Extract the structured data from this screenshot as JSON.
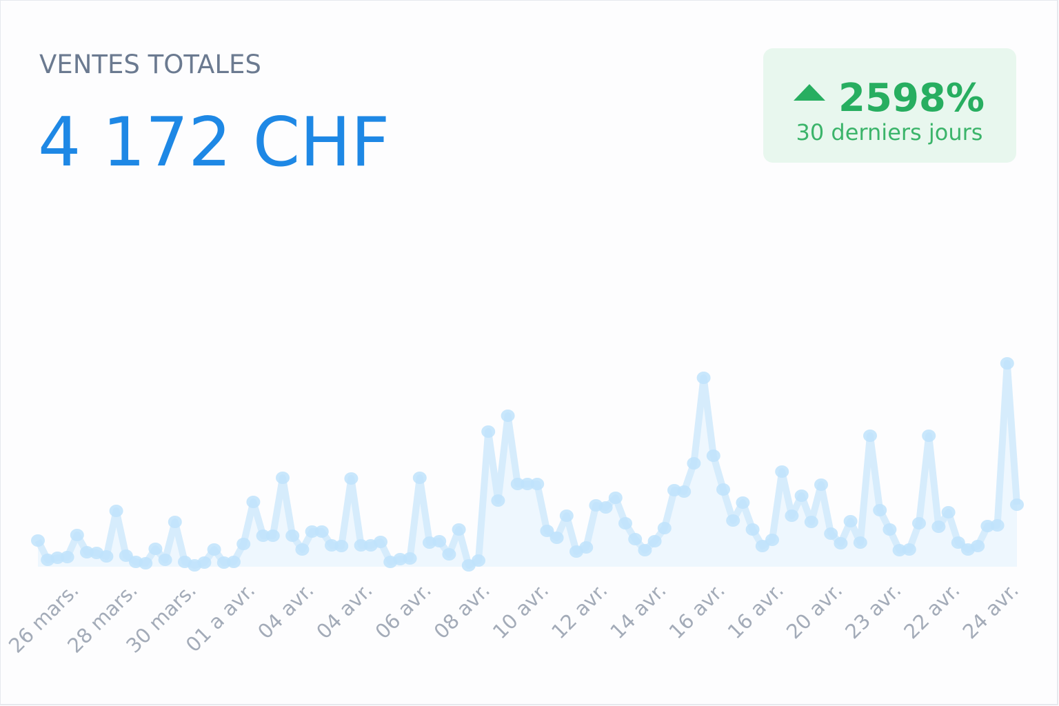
{
  "chart_data": {
    "type": "line",
    "title": "VENTES TOTALES",
    "subtitle": "4 172 CHF",
    "annotations": [
      "2598%",
      "30 derniers jours"
    ],
    "categories": [
      null,
      null,
      null,
      null,
      "26 mars.",
      null,
      null,
      null,
      null,
      null,
      "28 mars.",
      null,
      null,
      null,
      null,
      null,
      "30 mars.",
      null,
      null,
      null,
      null,
      null,
      "01 a avr.",
      null,
      null,
      null,
      null,
      null,
      "04 avr.",
      null,
      null,
      null,
      null,
      null,
      "04 avr.",
      null,
      null,
      null,
      null,
      null,
      "06 avr.",
      null,
      null,
      null,
      null,
      null,
      "08 avr.",
      null,
      null,
      null,
      null,
      null,
      "10 avr.",
      null,
      null,
      null,
      null,
      null,
      "12 avr.",
      null,
      null,
      null,
      null,
      null,
      "14 avr.",
      null,
      null,
      null,
      null,
      null,
      "16 avr.",
      null,
      null,
      null,
      null,
      null,
      "16 avr.",
      null,
      null,
      null,
      null,
      null,
      "20 avr.",
      null,
      null,
      null,
      null,
      null,
      "23 avr.",
      null,
      null,
      null,
      null,
      null,
      "22 avr.",
      null,
      null,
      null,
      null,
      null,
      "24 avr."
    ],
    "values": [
      38,
      10,
      13,
      14,
      46,
      21,
      20,
      15,
      81,
      16,
      7,
      5,
      26,
      10,
      65,
      7,
      2,
      6,
      25,
      6,
      7,
      33,
      94,
      45,
      45,
      129,
      45,
      25,
      51,
      51,
      31,
      30,
      128,
      31,
      31,
      36,
      7,
      11,
      12,
      129,
      35,
      37,
      18,
      54,
      2,
      9,
      196,
      96,
      219,
      120,
      120,
      120,
      52,
      42,
      74,
      22,
      28,
      89,
      86,
      100,
      63,
      40,
      24,
      37,
      56,
      111,
      109,
      150,
      274,
      161,
      112,
      67,
      93,
      54,
      30,
      39,
      138,
      74,
      103,
      65,
      119,
      48,
      34,
      66,
      35,
      190,
      82,
      54,
      24,
      25,
      63,
      190,
      58,
      79,
      35,
      25,
      30,
      59,
      60,
      295,
      90
    ],
    "color": "#bfe3fb",
    "ylim": [
      0,
      320
    ]
  }
}
